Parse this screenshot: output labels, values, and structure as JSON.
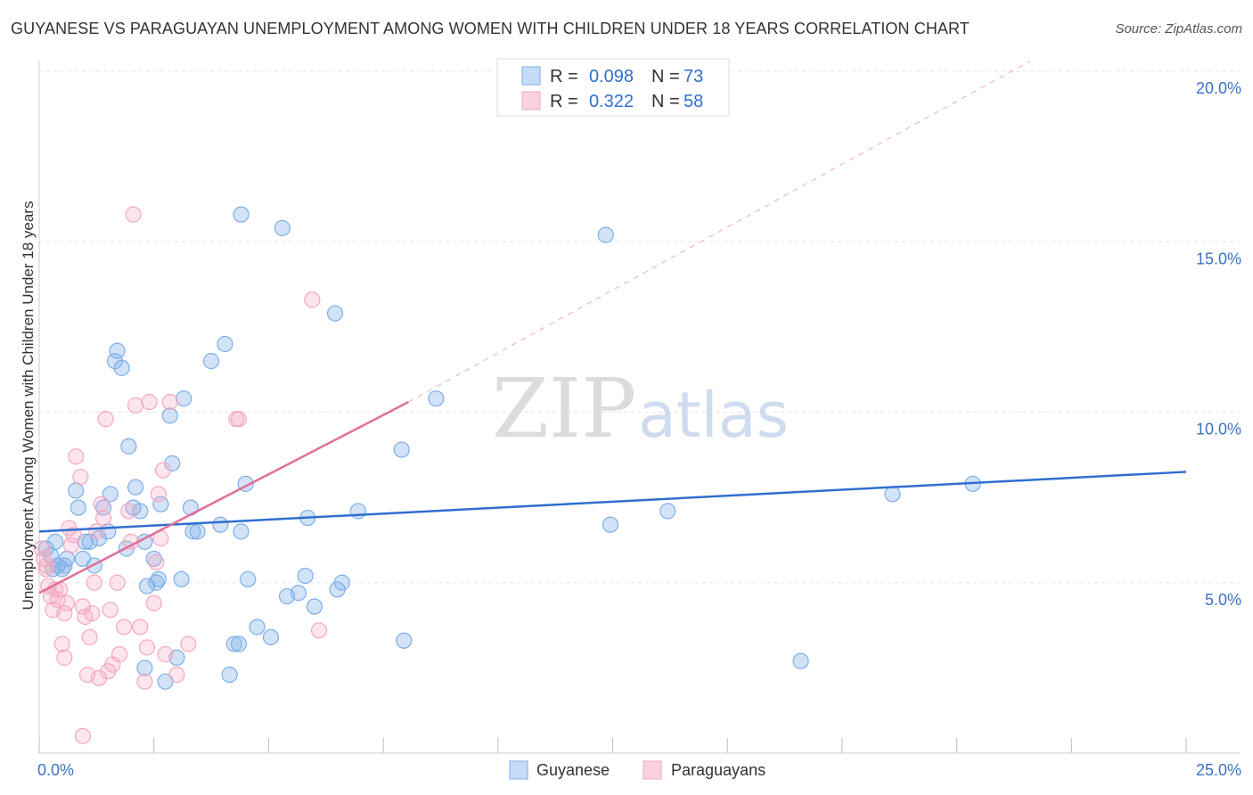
{
  "chart_data": {
    "type": "scatter",
    "title": "GUYANESE VS PARAGUAYAN UNEMPLOYMENT AMONG WOMEN WITH CHILDREN UNDER 18 YEARS CORRELATION CHART",
    "source": "Source: ZipAtlas.com",
    "xlabel": "",
    "ylabel": "Unemployment Among Women with Children Under 18 years",
    "xlim": [
      0,
      25
    ],
    "ylim": [
      0,
      20
    ],
    "x_tick_labels": [
      "0.0%",
      "25.0%"
    ],
    "y_ticks": [
      5,
      10,
      15,
      20
    ],
    "y_tick_labels": [
      "5.0%",
      "10.0%",
      "15.0%",
      "20.0%"
    ],
    "grid": true,
    "watermark": "ZIPatlas",
    "legend_position": "top-center",
    "series": [
      {
        "name": "Guyanese",
        "color": "#7eaee8",
        "line_color": "#2f6fd0",
        "R": "0.098",
        "N": "73",
        "trend": {
          "x0": 0,
          "y0": 6.5,
          "x1": 25,
          "y1": 8.25
        },
        "points": [
          [
            0.15,
            6.0
          ],
          [
            0.25,
            5.8
          ],
          [
            0.3,
            5.4
          ],
          [
            0.35,
            6.2
          ],
          [
            0.4,
            5.5
          ],
          [
            0.5,
            5.4
          ],
          [
            0.55,
            5.5
          ],
          [
            0.6,
            5.7
          ],
          [
            0.8,
            7.7
          ],
          [
            0.85,
            7.2
          ],
          [
            0.95,
            5.7
          ],
          [
            1.0,
            6.2
          ],
          [
            1.1,
            6.2
          ],
          [
            1.2,
            5.5
          ],
          [
            1.3,
            6.3
          ],
          [
            1.4,
            7.2
          ],
          [
            1.5,
            6.5
          ],
          [
            1.55,
            7.6
          ],
          [
            1.65,
            11.5
          ],
          [
            1.7,
            11.8
          ],
          [
            1.8,
            11.3
          ],
          [
            1.9,
            6.0
          ],
          [
            1.95,
            9.0
          ],
          [
            2.05,
            7.2
          ],
          [
            2.1,
            7.8
          ],
          [
            2.2,
            7.1
          ],
          [
            2.3,
            6.2
          ],
          [
            2.35,
            4.9
          ],
          [
            2.3,
            2.5
          ],
          [
            2.5,
            5.7
          ],
          [
            2.55,
            5.0
          ],
          [
            2.6,
            5.1
          ],
          [
            2.65,
            7.3
          ],
          [
            2.75,
            2.1
          ],
          [
            2.85,
            9.9
          ],
          [
            2.9,
            8.5
          ],
          [
            3.0,
            2.8
          ],
          [
            3.1,
            5.1
          ],
          [
            3.15,
            10.4
          ],
          [
            3.3,
            7.2
          ],
          [
            3.35,
            6.5
          ],
          [
            3.45,
            6.5
          ],
          [
            3.75,
            11.5
          ],
          [
            3.95,
            6.7
          ],
          [
            4.05,
            12.0
          ],
          [
            4.15,
            2.3
          ],
          [
            4.25,
            3.2
          ],
          [
            4.35,
            3.2
          ],
          [
            4.4,
            6.5
          ],
          [
            4.4,
            15.8
          ],
          [
            4.5,
            7.9
          ],
          [
            4.55,
            5.1
          ],
          [
            4.75,
            3.7
          ],
          [
            5.05,
            3.4
          ],
          [
            5.3,
            15.4
          ],
          [
            5.4,
            4.6
          ],
          [
            5.65,
            4.7
          ],
          [
            5.8,
            5.2
          ],
          [
            5.85,
            6.9
          ],
          [
            6.0,
            4.3
          ],
          [
            6.45,
            12.9
          ],
          [
            6.5,
            4.8
          ],
          [
            6.6,
            5.0
          ],
          [
            6.95,
            7.1
          ],
          [
            7.9,
            8.9
          ],
          [
            7.95,
            3.3
          ],
          [
            8.65,
            10.4
          ],
          [
            12.35,
            15.2
          ],
          [
            12.45,
            6.7
          ],
          [
            13.7,
            7.1
          ],
          [
            16.6,
            2.7
          ],
          [
            18.6,
            7.6
          ],
          [
            20.35,
            7.9
          ]
        ]
      },
      {
        "name": "Paraguayans",
        "color": "#f4a8c0",
        "line_color": "#e0709a",
        "R": "0.322",
        "N": "58",
        "trend": {
          "x0": 0,
          "y0": 4.7,
          "x1": 8.05,
          "y1": 10.3
        },
        "trend_extended": {
          "x0": 8.05,
          "y0": 10.3,
          "x1": 21.6,
          "y1": 20.3
        },
        "points": [
          [
            0.05,
            6.0
          ],
          [
            0.1,
            5.7
          ],
          [
            0.15,
            5.5
          ],
          [
            0.2,
            4.9
          ],
          [
            0.25,
            4.6
          ],
          [
            0.3,
            4.2
          ],
          [
            0.35,
            4.8
          ],
          [
            0.4,
            4.5
          ],
          [
            0.45,
            4.8
          ],
          [
            0.5,
            3.2
          ],
          [
            0.55,
            2.8
          ],
          [
            0.6,
            4.4
          ],
          [
            0.65,
            6.6
          ],
          [
            0.7,
            6.1
          ],
          [
            0.75,
            6.4
          ],
          [
            0.8,
            8.7
          ],
          [
            0.9,
            8.1
          ],
          [
            0.95,
            4.3
          ],
          [
            1.0,
            4.0
          ],
          [
            1.05,
            2.3
          ],
          [
            1.1,
            3.4
          ],
          [
            1.15,
            4.1
          ],
          [
            1.2,
            5.0
          ],
          [
            1.25,
            6.5
          ],
          [
            1.3,
            2.2
          ],
          [
            1.35,
            7.3
          ],
          [
            1.4,
            6.9
          ],
          [
            1.45,
            9.8
          ],
          [
            1.5,
            2.4
          ],
          [
            1.55,
            4.2
          ],
          [
            1.6,
            2.6
          ],
          [
            1.7,
            5.0
          ],
          [
            1.75,
            2.9
          ],
          [
            1.85,
            3.7
          ],
          [
            1.95,
            7.1
          ],
          [
            2.0,
            6.2
          ],
          [
            2.05,
            15.8
          ],
          [
            2.1,
            10.2
          ],
          [
            2.2,
            3.7
          ],
          [
            2.3,
            2.1
          ],
          [
            2.35,
            3.1
          ],
          [
            2.4,
            10.3
          ],
          [
            2.5,
            4.4
          ],
          [
            2.55,
            5.6
          ],
          [
            2.6,
            7.6
          ],
          [
            2.65,
            6.3
          ],
          [
            2.7,
            8.3
          ],
          [
            2.75,
            2.9
          ],
          [
            2.85,
            10.3
          ],
          [
            3.0,
            2.3
          ],
          [
            3.25,
            3.2
          ],
          [
            4.3,
            9.8
          ],
          [
            4.35,
            9.8
          ],
          [
            5.95,
            13.3
          ],
          [
            6.1,
            3.6
          ],
          [
            0.95,
            0.5
          ],
          [
            0.15,
            5.4
          ],
          [
            0.55,
            4.1
          ]
        ]
      }
    ]
  },
  "legend": {
    "r_label": "R =",
    "n_label": "N ="
  }
}
